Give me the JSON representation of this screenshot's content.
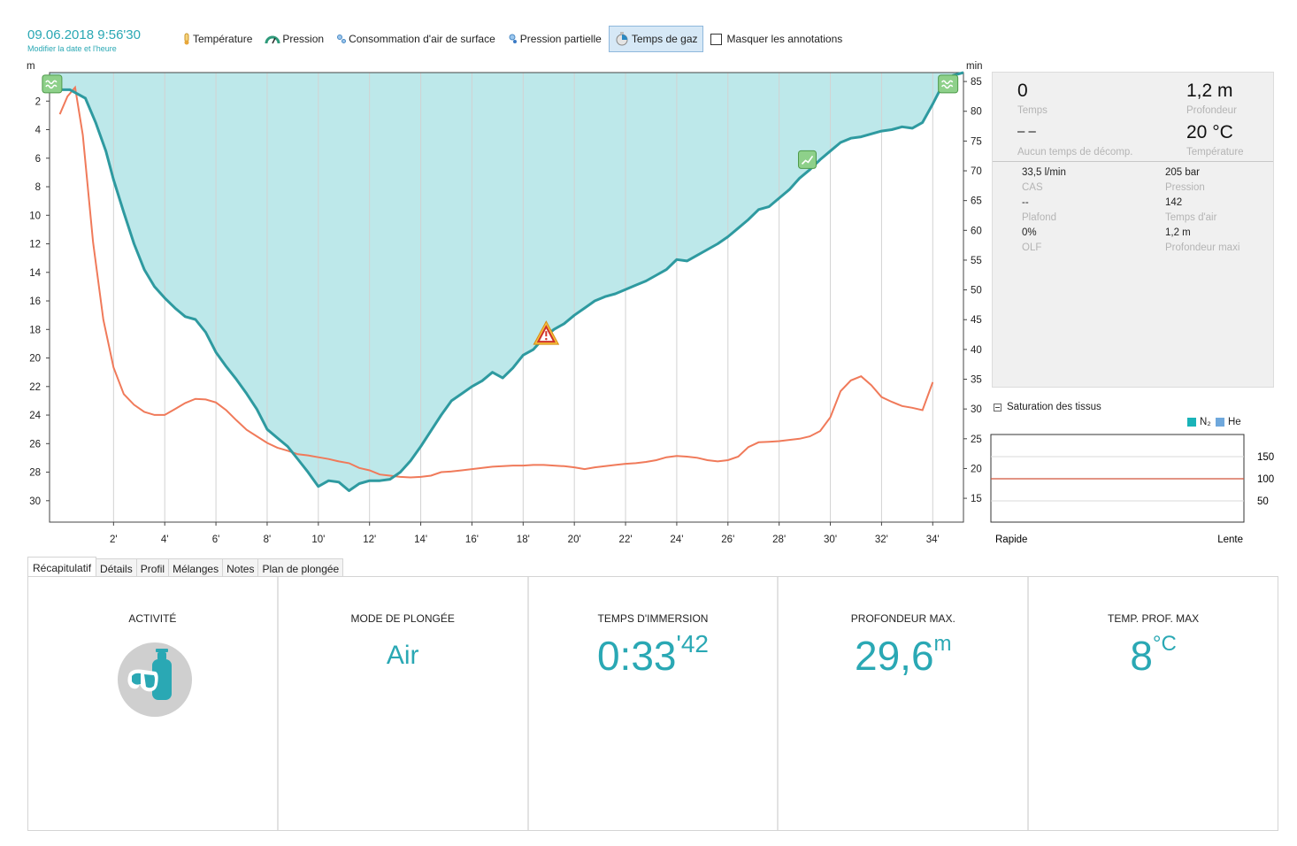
{
  "header": {
    "date": "09.06.2018 9:56'30",
    "change_date_link": "Modifier la date et l'heure"
  },
  "toolbar": {
    "temperature": "Température",
    "pressure": "Pression",
    "sac": "Consommation d'air de surface",
    "partial_pressure": "Pression partielle",
    "gas_time": "Temps de gaz",
    "hide_annotations": "Masquer les annotations"
  },
  "chart_data": {
    "type": "line",
    "left_axis_unit": "m",
    "right_axis_unit": "min",
    "x_ticks": [
      2,
      4,
      6,
      8,
      10,
      12,
      14,
      16,
      18,
      20,
      22,
      24,
      26,
      28,
      30,
      32,
      34
    ],
    "x_tick_suffix": "'",
    "left_ticks": [
      2,
      4,
      6,
      8,
      10,
      12,
      14,
      16,
      18,
      20,
      22,
      24,
      26,
      28,
      30
    ],
    "right_ticks": [
      15,
      20,
      25,
      30,
      35,
      40,
      45,
      50,
      55,
      60,
      65,
      70,
      75,
      80,
      85
    ],
    "xlim": [
      -0.5,
      35.2
    ],
    "ylim_depth": [
      0,
      31.5
    ],
    "ylim_gas_time": [
      11,
      86.5
    ],
    "grid": true,
    "colors": {
      "depth_fill": "#bde8ea",
      "depth_line": "#2e9aa0",
      "gas_line": "#f07a5a",
      "grid": "#d2d2d2"
    },
    "series": [
      {
        "id": "depth",
        "axis": "left",
        "x": [
          -0.5,
          0.3,
          0.9,
          1.3,
          1.7,
          2.0,
          2.4,
          2.8,
          3.2,
          3.6,
          4.0,
          4.4,
          4.8,
          5.2,
          5.6,
          6.0,
          6.4,
          6.8,
          7.2,
          7.6,
          8.0,
          8.4,
          8.8,
          9.2,
          9.6,
          10.0,
          10.4,
          10.8,
          11.2,
          11.6,
          12.0,
          12.4,
          12.8,
          13.2,
          13.6,
          14.0,
          14.4,
          14.8,
          15.2,
          15.6,
          16.0,
          16.4,
          16.8,
          17.2,
          17.6,
          18.0,
          18.4,
          18.8,
          19.2,
          19.6,
          20.0,
          20.4,
          20.8,
          21.2,
          21.6,
          22.0,
          22.4,
          22.8,
          23.2,
          23.6,
          24.0,
          24.4,
          24.8,
          25.2,
          25.6,
          26.0,
          26.4,
          26.8,
          27.2,
          27.6,
          28.0,
          28.4,
          28.8,
          29.2,
          29.6,
          30.0,
          30.4,
          30.8,
          31.2,
          31.6,
          32.0,
          32.4,
          32.8,
          33.2,
          33.6,
          34.0,
          34.4,
          34.8,
          35.2
        ],
        "y": [
          1.2,
          1.2,
          1.8,
          3.5,
          5.5,
          7.5,
          9.8,
          12.0,
          13.8,
          15.0,
          15.8,
          16.5,
          17.1,
          17.3,
          18.2,
          19.6,
          20.6,
          21.5,
          22.5,
          23.6,
          25.0,
          25.6,
          26.2,
          27.1,
          28.0,
          29.0,
          28.6,
          28.7,
          29.3,
          28.8,
          28.6,
          28.6,
          28.5,
          28.0,
          27.2,
          26.2,
          25.1,
          24.0,
          23.0,
          22.5,
          22.0,
          21.6,
          21.0,
          21.4,
          20.7,
          19.8,
          19.4,
          18.6,
          18.0,
          17.6,
          17.0,
          16.5,
          16.0,
          15.7,
          15.5,
          15.2,
          14.9,
          14.6,
          14.2,
          13.8,
          13.1,
          13.2,
          12.8,
          12.4,
          12.0,
          11.5,
          10.9,
          10.3,
          9.6,
          9.4,
          8.8,
          8.2,
          7.4,
          6.8,
          6.1,
          5.5,
          4.9,
          4.6,
          4.5,
          4.3,
          4.1,
          4.0,
          3.8,
          3.9,
          3.5,
          2.2,
          0.8,
          0.2,
          0.0
        ]
      },
      {
        "id": "gas_time",
        "axis": "right",
        "x": [
          -0.1,
          0.2,
          0.5,
          0.8,
          1.2,
          1.6,
          2.0,
          2.4,
          2.8,
          3.2,
          3.6,
          4.0,
          4.4,
          4.8,
          5.2,
          5.6,
          6.0,
          6.4,
          6.8,
          7.2,
          7.6,
          8.0,
          8.4,
          8.8,
          9.2,
          9.6,
          10.0,
          10.4,
          10.8,
          11.2,
          11.6,
          12.0,
          12.4,
          12.8,
          13.2,
          13.6,
          14.0,
          14.4,
          14.8,
          15.2,
          15.6,
          16.0,
          16.4,
          16.8,
          17.2,
          17.6,
          18.0,
          18.4,
          18.8,
          19.2,
          19.6,
          20.0,
          20.4,
          20.8,
          21.2,
          21.6,
          22.0,
          22.4,
          22.8,
          23.2,
          23.6,
          24.0,
          24.4,
          24.8,
          25.2,
          25.6,
          26.0,
          26.4,
          26.8,
          27.2,
          27.6,
          28.0,
          28.4,
          28.8,
          29.2,
          29.6,
          30.0,
          30.4,
          30.8,
          31.2,
          31.6,
          32.0,
          32.4,
          32.8,
          33.2,
          33.6,
          34.0
        ],
        "y": [
          79.5,
          82.5,
          84,
          76,
          58,
          45,
          37,
          32.5,
          30.7,
          29.5,
          29.0,
          29.0,
          30.0,
          31.0,
          31.7,
          31.6,
          31.1,
          29.8,
          28.1,
          26.5,
          25.4,
          24.3,
          23.5,
          23.0,
          22.4,
          22.2,
          21.9,
          21.6,
          21.2,
          20.9,
          20.1,
          19.7,
          19.0,
          18.8,
          18.6,
          18.5,
          18.6,
          18.8,
          19.4,
          19.5,
          19.7,
          19.9,
          20.1,
          20.3,
          20.4,
          20.5,
          20.5,
          20.6,
          20.6,
          20.5,
          20.4,
          20.2,
          19.9,
          20.2,
          20.4,
          20.6,
          20.8,
          20.9,
          21.1,
          21.4,
          21.9,
          22.1,
          22.0,
          21.8,
          21.4,
          21.2,
          21.4,
          22.0,
          23.6,
          24.4,
          24.5,
          24.6,
          24.8,
          25.0,
          25.4,
          26.3,
          28.6,
          33.0,
          34.8,
          35.5,
          34.0,
          32.0,
          31.2,
          30.5,
          30.2,
          29.8,
          34.5
        ]
      }
    ],
    "events": [
      {
        "type": "surface",
        "x": -0.4,
        "depth": 0.8
      },
      {
        "type": "warning",
        "x": 18.9,
        "depth": 18.3
      },
      {
        "type": "ascent",
        "x": 29.1,
        "depth": 6.1
      },
      {
        "type": "surface",
        "x": 34.6,
        "depth": 0.8
      }
    ]
  },
  "info": {
    "time_value": "0",
    "time_label": "Temps",
    "depth_value": "1,2 m",
    "depth_label": "Profondeur",
    "deco_value": "– –",
    "deco_label": "Aucun temps de décomp.",
    "temp_value": "20 °C",
    "temp_label": "Température",
    "sac_value": "33,5 l/min",
    "sac_label": "CAS",
    "pressure_value": "205 bar",
    "pressure_label": "Pression",
    "ceiling_value": "--",
    "ceiling_label": "Plafond",
    "air_time_value": "142",
    "air_time_label": "Temps d'air",
    "olf_value": "0%",
    "olf_label": "OLF",
    "max_depth_value": "1,2 m",
    "max_depth_label": "Profondeur maxi"
  },
  "saturation": {
    "title": "Saturation des tissus",
    "legend_n2": "N₂",
    "legend_he": "He",
    "ticks": [
      "150",
      "100",
      "50"
    ],
    "left_label": "Rapide",
    "right_label": "Lente",
    "n2_color": "#1ab3b8",
    "he_color": "#6fa8dc",
    "ref_line_color": "#d0533a",
    "reference_value": 100
  },
  "tabs": [
    "Récapitulatif",
    "Détails",
    "Profil",
    "Mélanges",
    "Notes",
    "Plan de plongée"
  ],
  "summary": {
    "activity_title": "ACTIVITÉ",
    "mode_title": "MODE DE PLONGÉE",
    "mode_value": "Air",
    "immersion_title": "TEMPS D'IMMERSION",
    "immersion_main": "0:33",
    "immersion_sup": "'42",
    "maxdepth_title": "PROFONDEUR MAX.",
    "maxdepth_value": "29,6",
    "maxdepth_unit": "m",
    "temp_title": "TEMP. PROF. MAX",
    "temp_value": "8",
    "temp_unit": "°C",
    "accent": "#2aa8b4"
  }
}
